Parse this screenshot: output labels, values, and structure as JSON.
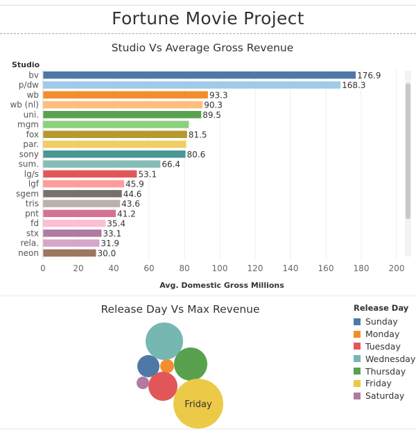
{
  "dashboard": {
    "title": "Fortune Movie Project"
  },
  "chart_data": [
    {
      "type": "bar",
      "orientation": "horizontal",
      "title": "Studio Vs Average Gross Revenue",
      "category_header": "Studio",
      "xlabel": "Avg. Domestic Gross Millions",
      "xlim": [
        0,
        200
      ],
      "xticks": [
        0,
        20,
        40,
        60,
        80,
        100,
        120,
        140,
        160,
        180,
        200
      ],
      "grid": true,
      "scrollable": true,
      "categories": [
        "bv",
        "p/dw",
        "wb",
        "wb (nl)",
        "uni.",
        "mgm",
        "fox",
        "par.",
        "sony",
        "sum.",
        "lg/s",
        "lgf",
        "sgem",
        "tris",
        "pnt",
        "fd",
        "stx",
        "rela.",
        "neon"
      ],
      "values": [
        176.9,
        168.3,
        93.3,
        90.3,
        89.5,
        82.5,
        81.5,
        81.0,
        80.6,
        66.4,
        53.1,
        45.9,
        44.6,
        43.6,
        41.2,
        35.4,
        33.1,
        31.9,
        30.0
      ],
      "labels": [
        "176.9",
        "168.3",
        "93.3",
        "90.3",
        "89.5",
        "",
        "81.5",
        "",
        "80.6",
        "66.4",
        "53.1",
        "45.9",
        "44.6",
        "43.6",
        "41.2",
        "35.4",
        "33.1",
        "31.9",
        "30.0"
      ],
      "colors": [
        "#4e79a7",
        "#a0cbe8",
        "#f28e2b",
        "#ffbe7d",
        "#59a14f",
        "#8cd17d",
        "#b6992d",
        "#f1ce63",
        "#499894",
        "#86bcb6",
        "#e15759",
        "#ff9d9a",
        "#79706e",
        "#bab0ac",
        "#d37295",
        "#fabfd2",
        "#b07aa1",
        "#d4a6c8",
        "#9d7660"
      ]
    },
    {
      "type": "bubble",
      "title": "Release Day Vs Max Revenue",
      "legend_title": "Release Day",
      "legend_position": "right",
      "series": [
        {
          "name": "Sunday",
          "color": "#4e79a7",
          "size": 16,
          "label": ""
        },
        {
          "name": "Monday",
          "color": "#f28e2b",
          "size": 10,
          "label": ""
        },
        {
          "name": "Tuesday",
          "color": "#e15759",
          "size": 21,
          "label": ""
        },
        {
          "name": "Wednesday",
          "color": "#76b7b2",
          "size": 27,
          "label": ""
        },
        {
          "name": "Thursday",
          "color": "#59a14f",
          "size": 24,
          "label": ""
        },
        {
          "name": "Friday",
          "color": "#edc948",
          "size": 36,
          "label": "Friday"
        },
        {
          "name": "Saturday",
          "color": "#b07aa1",
          "size": 9,
          "label": ""
        }
      ]
    }
  ]
}
